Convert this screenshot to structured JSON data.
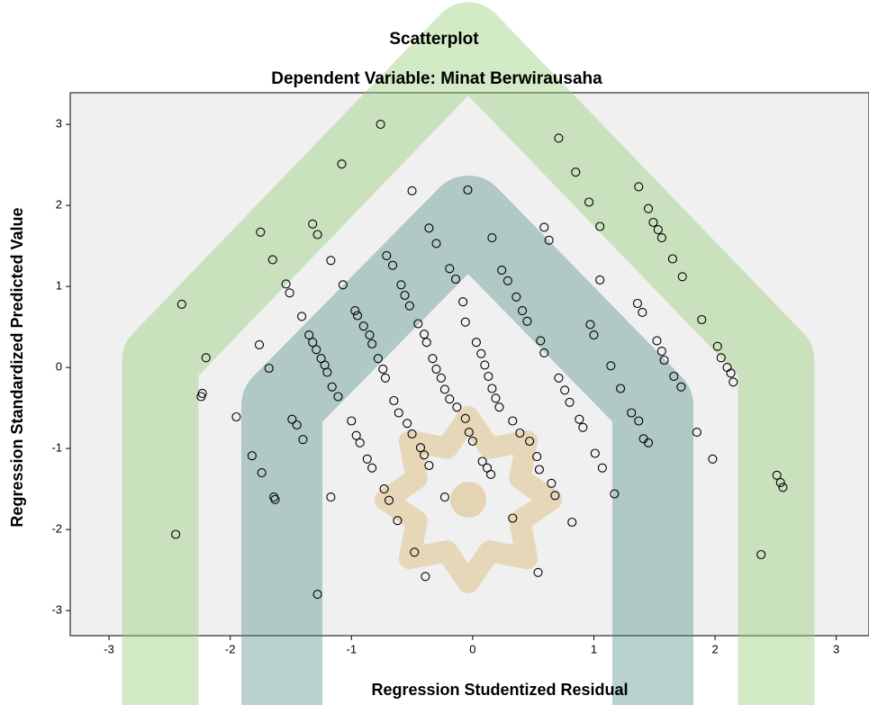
{
  "chart_data": {
    "type": "scatter",
    "title": "Scatterplot",
    "subtitle": "Dependent Variable: Minat Berwirausaha",
    "x_label": "Regression Studentized Residual",
    "y_label": "Regression Standardized Predicted Value",
    "color": "#000000",
    "xlim": [
      -3.32,
      3.27
    ],
    "ylim": [
      -3.31,
      3.39
    ],
    "xticks": [
      -3,
      -2,
      -1,
      0,
      1,
      2,
      3
    ],
    "yticks": [
      -3,
      -2,
      -1,
      0,
      1,
      2,
      3
    ],
    "x": [
      -2.4,
      -2.2,
      -2.45,
      -2.24,
      -2.23,
      -1.95,
      -1.82,
      -1.74,
      -1.76,
      -1.75,
      -1.65,
      -1.68,
      -1.64,
      -1.63,
      -1.54,
      -1.51,
      -1.49,
      -1.45,
      -1.4,
      -1.41,
      -1.32,
      -1.28,
      -1.35,
      -1.32,
      -1.29,
      -1.25,
      -1.22,
      -1.2,
      -1.16,
      -1.11,
      -1.17,
      -1.17,
      -1.28,
      -1.08,
      -1.07,
      -1.0,
      -0.96,
      -0.93,
      -0.97,
      -0.95,
      -0.9,
      -0.85,
      -0.83,
      -0.87,
      -0.83,
      -0.76,
      -0.78,
      -0.74,
      -0.72,
      -0.73,
      -0.69,
      -0.71,
      -0.66,
      -0.62,
      -0.59,
      -0.56,
      -0.52,
      -0.65,
      -0.61,
      -0.54,
      -0.5,
      -0.5,
      -0.48,
      -0.45,
      -0.4,
      -0.38,
      -0.43,
      -0.4,
      -0.36,
      -0.39,
      -0.36,
      -0.3,
      -0.33,
      -0.3,
      -0.26,
      -0.23,
      -0.19,
      -0.19,
      -0.14,
      -0.23,
      -0.13,
      -0.08,
      -0.06,
      -0.04,
      -0.06,
      -0.03,
      0.0,
      0.03,
      0.07,
      0.1,
      0.13,
      0.16,
      0.08,
      0.12,
      0.15,
      0.16,
      0.19,
      0.22,
      0.24,
      0.29,
      0.33,
      0.33,
      0.39,
      0.36,
      0.41,
      0.45,
      0.47,
      0.53,
      0.56,
      0.59,
      0.55,
      0.59,
      0.63,
      0.65,
      0.68,
      0.71,
      0.54,
      0.71,
      0.76,
      0.8,
      0.82,
      0.85,
      0.88,
      0.91,
      0.96,
      0.97,
      1.0,
      1.01,
      1.07,
      1.05,
      1.05,
      1.14,
      1.22,
      1.17,
      1.31,
      1.37,
      1.41,
      1.45,
      1.36,
      1.4,
      1.37,
      1.45,
      1.49,
      1.53,
      1.56,
      1.52,
      1.56,
      1.58,
      1.65,
      1.66,
      1.72,
      1.73,
      1.85,
      1.89,
      1.98,
      2.02,
      2.05,
      2.1,
      2.13,
      2.15,
      2.38,
      2.51,
      2.54,
      2.56
    ],
    "values": [
      0.78,
      0.12,
      -2.06,
      -0.36,
      -0.32,
      -0.61,
      -1.09,
      -1.3,
      0.28,
      1.67,
      1.33,
      -0.01,
      -1.6,
      -1.63,
      1.03,
      0.92,
      -0.64,
      -0.71,
      -0.89,
      0.63,
      1.77,
      1.64,
      0.4,
      0.31,
      0.22,
      0.11,
      0.03,
      -0.06,
      -0.24,
      -0.36,
      1.32,
      -1.6,
      -2.8,
      2.51,
      1.02,
      -0.66,
      -0.84,
      -0.93,
      0.7,
      0.64,
      0.51,
      0.4,
      0.29,
      -1.13,
      -1.24,
      3.0,
      0.11,
      -0.02,
      -0.13,
      -1.5,
      -1.64,
      1.38,
      1.26,
      -1.89,
      1.02,
      0.89,
      0.76,
      -0.41,
      -0.56,
      -0.69,
      -0.82,
      2.18,
      -2.28,
      0.54,
      0.41,
      0.31,
      -0.99,
      -1.08,
      -1.21,
      -2.58,
      1.72,
      1.53,
      0.11,
      -0.02,
      -0.13,
      -0.27,
      -0.39,
      1.22,
      1.09,
      -1.6,
      -0.49,
      0.81,
      -0.63,
      2.19,
      0.56,
      -0.8,
      -0.91,
      0.31,
      0.17,
      0.03,
      -0.11,
      -0.26,
      -1.16,
      -1.24,
      -1.32,
      1.6,
      -0.38,
      -0.49,
      1.2,
      1.07,
      -1.86,
      -0.66,
      -0.81,
      0.87,
      0.7,
      0.57,
      -0.91,
      -1.1,
      0.33,
      0.18,
      -1.26,
      1.73,
      1.57,
      -1.43,
      -1.58,
      -0.13,
      -2.53,
      2.83,
      -0.28,
      -0.43,
      -1.91,
      2.41,
      -0.64,
      -0.74,
      2.04,
      0.53,
      0.4,
      -1.06,
      -1.24,
      1.74,
      1.08,
      0.02,
      -0.26,
      -1.56,
      -0.56,
      -0.66,
      -0.88,
      -0.93,
      0.79,
      0.68,
      2.23,
      1.96,
      1.79,
      1.7,
      1.6,
      0.33,
      0.2,
      0.09,
      1.34,
      -0.11,
      -0.24,
      1.12,
      -0.8,
      0.59,
      -1.13,
      0.26,
      0.12,
      0.0,
      -0.07,
      -0.18,
      -2.31,
      -1.33,
      -1.42,
      -1.48
    ]
  }
}
